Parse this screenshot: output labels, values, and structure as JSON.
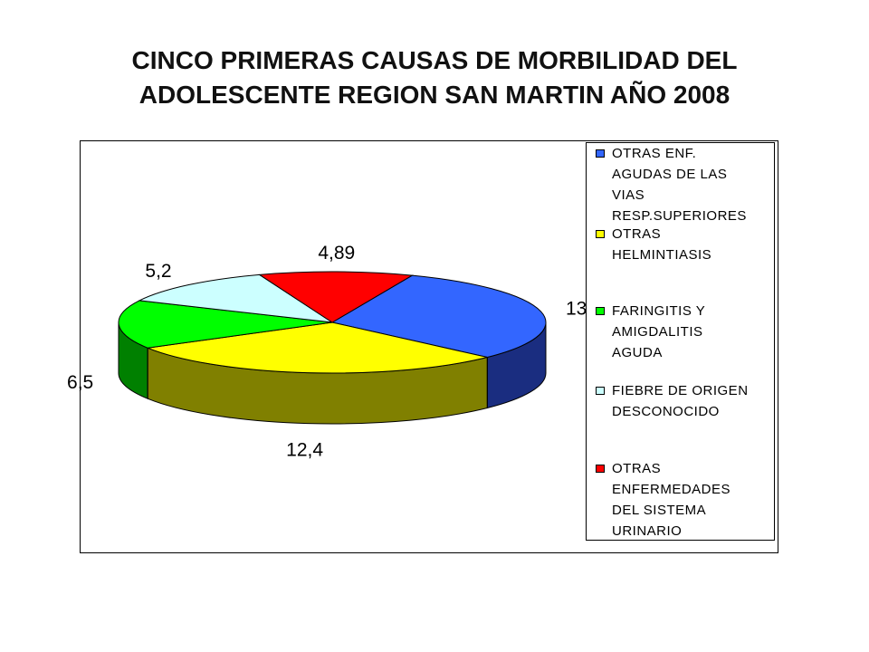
{
  "title_lines": [
    "CINCO PRIMERAS CAUSAS DE MORBILIDAD DEL",
    "ADOLESCENTE REGION SAN MARTIN AÑO 2008"
  ],
  "chart_data": {
    "type": "pie",
    "title": "CINCO PRIMERAS CAUSAS DE MORBILIDAD DEL ADOLESCENTE REGION SAN MARTIN AÑO 2008",
    "three_d": true,
    "legend_position": "right",
    "slices": [
      {
        "label": "OTRAS ENF. AGUDAS DE LAS VIAS RESP.SUPERIORES",
        "value": 13,
        "value_label": "13",
        "color": "#3366ff",
        "side_color": "#1a2d80"
      },
      {
        "label": "OTRAS HELMINTIASIS",
        "value": 12.4,
        "value_label": "12,4",
        "color": "#ffff00",
        "side_color": "#808000"
      },
      {
        "label": "FARINGITIS Y AMIGDALITIS AGUDA",
        "value": 6.5,
        "value_label": "6,5",
        "color": "#00ff00",
        "side_color": "#008000"
      },
      {
        "label": "FIEBRE DE ORIGEN DESCONOCIDO",
        "value": 5.2,
        "value_label": "5,2",
        "color": "#ccffff",
        "side_color": "#6a8888"
      },
      {
        "label": "OTRAS ENFERMEDADES DEL SISTEMA URINARIO",
        "value": 4.89,
        "value_label": "4,89",
        "color": "#ff0000",
        "side_color": "#800000"
      }
    ]
  },
  "legend": [
    {
      "lines": [
        "OTRAS ENF.",
        "AGUDAS DE LAS",
        "VIAS",
        "RESP.SUPERIORES"
      ],
      "color": "#3366ff"
    },
    {
      "lines": [
        "OTRAS",
        "HELMINTIASIS"
      ],
      "color": "#ffff00"
    },
    {
      "lines": [
        "FARINGITIS Y",
        "AMIGDALITIS",
        "AGUDA"
      ],
      "color": "#00ff00"
    },
    {
      "lines": [
        "FIEBRE DE ORIGEN",
        "DESCONOCIDO"
      ],
      "color": "#ccffff"
    },
    {
      "lines": [
        "OTRAS",
        "ENFERMEDADES",
        "DEL SISTEMA",
        "URINARIO"
      ],
      "color": "#ff0000"
    }
  ]
}
